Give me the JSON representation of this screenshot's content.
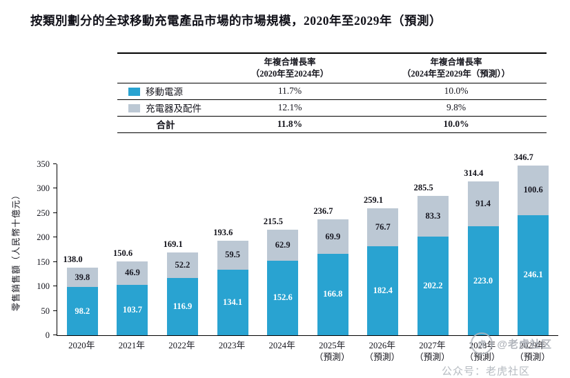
{
  "title": "按類別劃分的全球移動充電產品市場的市場規模，2020年至2029年（預測）",
  "colors": {
    "power_bank_blue": "#29a3d1",
    "charger_accessories_gray": "#bcc8d4",
    "axis": "#000000"
  },
  "table": {
    "col_headers": [
      {
        "line1": "年複合增長率",
        "line2": "（2020年至2024年）"
      },
      {
        "line1": "年複合增長率",
        "line2": "（2024年至2029年（預測））"
      }
    ],
    "rows": [
      {
        "label": "移動電源",
        "cagr_2020_2024": "11.7%",
        "cagr_2024_2029": "10.0%"
      },
      {
        "label": "充電器及配件",
        "cagr_2020_2024": "12.1%",
        "cagr_2024_2029": "9.8%"
      },
      {
        "label": "合計",
        "cagr_2020_2024": "11.8%",
        "cagr_2024_2029": "10.0%"
      }
    ]
  },
  "chart_data": {
    "type": "bar",
    "stacked": true,
    "title": "按類別劃分的全球移動充電產品市場的市場規模，2020年至2029年（預測）",
    "ylabel": "零售銷售額（人民幣十億元）",
    "ylim": [
      0,
      350
    ],
    "yticks": [
      0,
      50,
      100,
      150,
      200,
      250,
      300,
      350
    ],
    "grid": false,
    "legend_position": "table-left-column",
    "categories": [
      {
        "line1": "2020年",
        "line2": ""
      },
      {
        "line1": "2021年",
        "line2": ""
      },
      {
        "line1": "2022年",
        "line2": ""
      },
      {
        "line1": "2023年",
        "line2": ""
      },
      {
        "line1": "2024年",
        "line2": ""
      },
      {
        "line1": "2025年",
        "line2": "（預測）"
      },
      {
        "line1": "2026年",
        "line2": "（預測）"
      },
      {
        "line1": "2027年",
        "line2": "（預測）"
      },
      {
        "line1": "2028年",
        "line2": "（預測）"
      },
      {
        "line1": "2029年",
        "line2": "（預測）"
      }
    ],
    "series": [
      {
        "name": "移動電源",
        "color": "#29a3d1",
        "values": [
          98.2,
          103.7,
          116.9,
          134.1,
          152.6,
          166.8,
          182.4,
          202.2,
          223.0,
          246.1
        ]
      },
      {
        "name": "充電器及配件",
        "color": "#bcc8d4",
        "values": [
          39.8,
          46.9,
          52.2,
          59.5,
          62.9,
          69.9,
          76.7,
          83.3,
          91.4,
          100.6
        ]
      }
    ],
    "totals": [
      138.0,
      150.6,
      169.1,
      193.6,
      215.5,
      236.7,
      259.1,
      285.5,
      314.4,
      346.7
    ]
  },
  "watermark": {
    "logo_glyph": "虎",
    "handle": "@老虎社区",
    "caption": "公众号：老虎社区"
  }
}
